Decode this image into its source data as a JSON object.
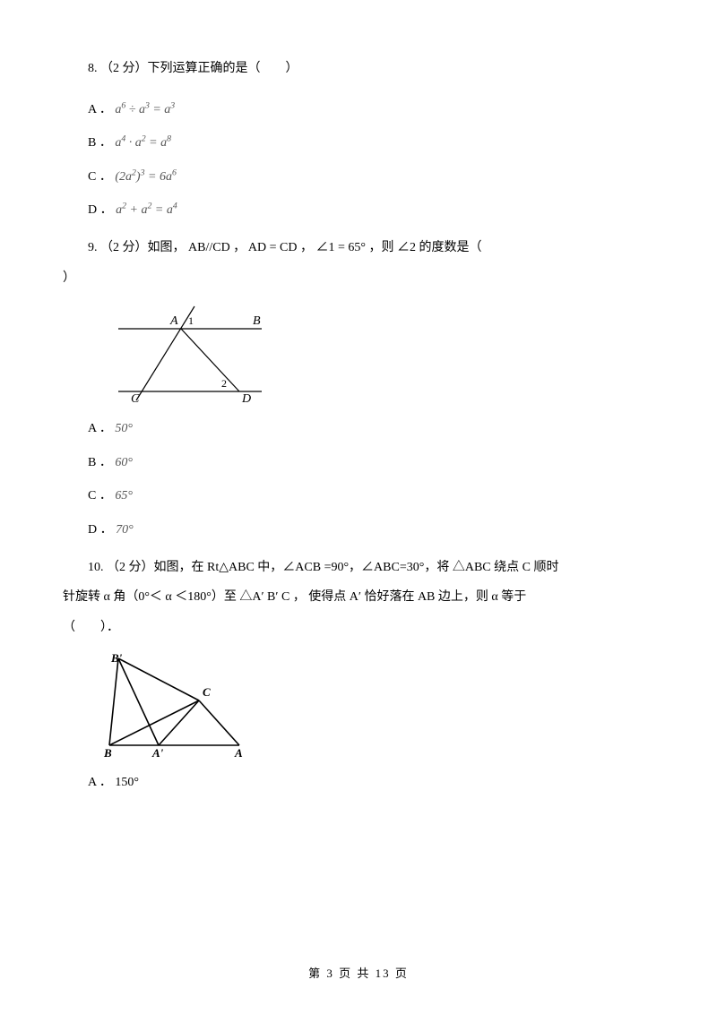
{
  "q8": {
    "stem_pre": "8.  （2 分）下列运算正确的是（",
    "stem_post": "）",
    "blank": "　　",
    "options": {
      "A": {
        "label": "A ．",
        "math_html": "<i>a</i><sup>6</sup> ÷ <i>a</i><sup>3</sup> = <i>a</i><sup>3</sup>"
      },
      "B": {
        "label": "B ．",
        "math_html": "<i>a</i><sup>4</sup> · <i>a</i><sup>2</sup> = <i>a</i><sup>8</sup>"
      },
      "C": {
        "label": "C ．",
        "math_html": "(2<i>a</i><sup>2</sup>)<sup>3</sup> = 6<i>a</i><sup>6</sup>"
      },
      "D": {
        "label": "D ．",
        "math_html": "<i>a</i><sup>2</sup> + <i>a</i><sup>2</sup> = <i>a</i><sup>4</sup>"
      }
    }
  },
  "q9": {
    "stem_pre": "9.  （2 分）如图，  AB//CD  ，  AD = CD  ，  ∠1 = 65°  ，则  ∠2  的度数是（",
    "stem_post": "）",
    "blank": "　",
    "options": {
      "A": {
        "label": "A ．",
        "math_html": "50°"
      },
      "B": {
        "label": "B ．",
        "math_html": "60°"
      },
      "C": {
        "label": "C ．",
        "math_html": "65°"
      },
      "D": {
        "label": "D ．",
        "math_html": "70°"
      }
    },
    "diagram": {
      "stroke": "#000000",
      "labels": {
        "A": "A",
        "B": "B",
        "C": "C",
        "D": "D",
        "one": "1",
        "two": "2"
      }
    }
  },
  "q10": {
    "line1_pre": "10.   （2 分）如图，在 Rt△ABC 中，∠ACB  =90°，∠ABC=30°，将 △ABC 绕点 C 顺时",
    "line2": "针旋转 α 角（0°＜ α ＜180°）至 △A′ B′ C ，  使得点 A′ 恰好落在 AB 边上，则 α 等于",
    "line3_open": "（",
    "line3_blank": "　　",
    "line3_close": "）．",
    "options": {
      "A": {
        "label": "A ．",
        "text": " 150°"
      }
    },
    "diagram": {
      "stroke": "#000000",
      "labels": {
        "B": "B",
        "Bp": "B'",
        "C": "C",
        "A": "A",
        "Ap": "A'"
      }
    }
  },
  "footer": "第  3  页  共  13  页"
}
